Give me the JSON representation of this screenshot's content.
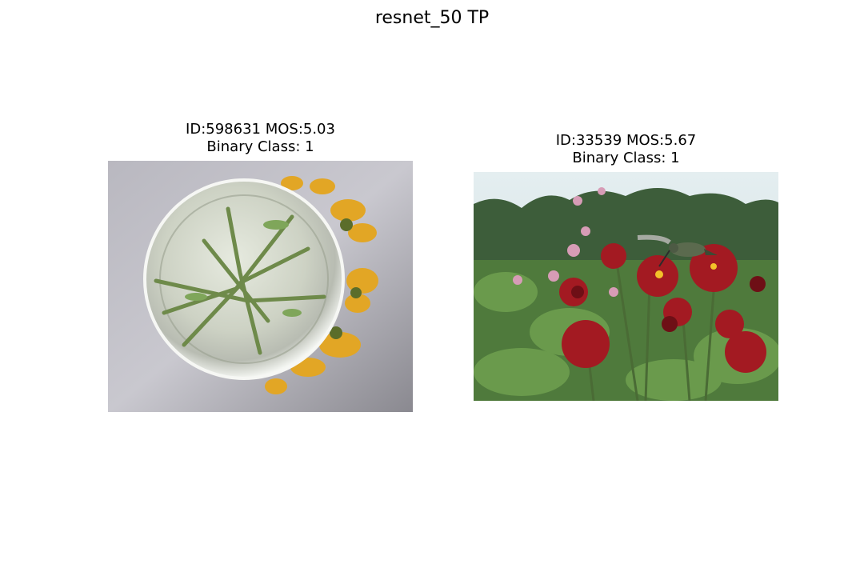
{
  "figure": {
    "title": "resnet_50 TP"
  },
  "panels": [
    {
      "title_line1": "ID:598631 MOS:5.03",
      "title_line2": "Binary Class: 1",
      "image_description": "top-down view of a clear glass vase with green stems, yellow flowers behind it on a grey background"
    },
    {
      "title_line1": "ID:33539 MOS:5.67",
      "title_line2": "Binary Class: 1",
      "image_description": "hummingbird feeding on red dahlias in a garden with trees and sky in background"
    }
  ]
}
